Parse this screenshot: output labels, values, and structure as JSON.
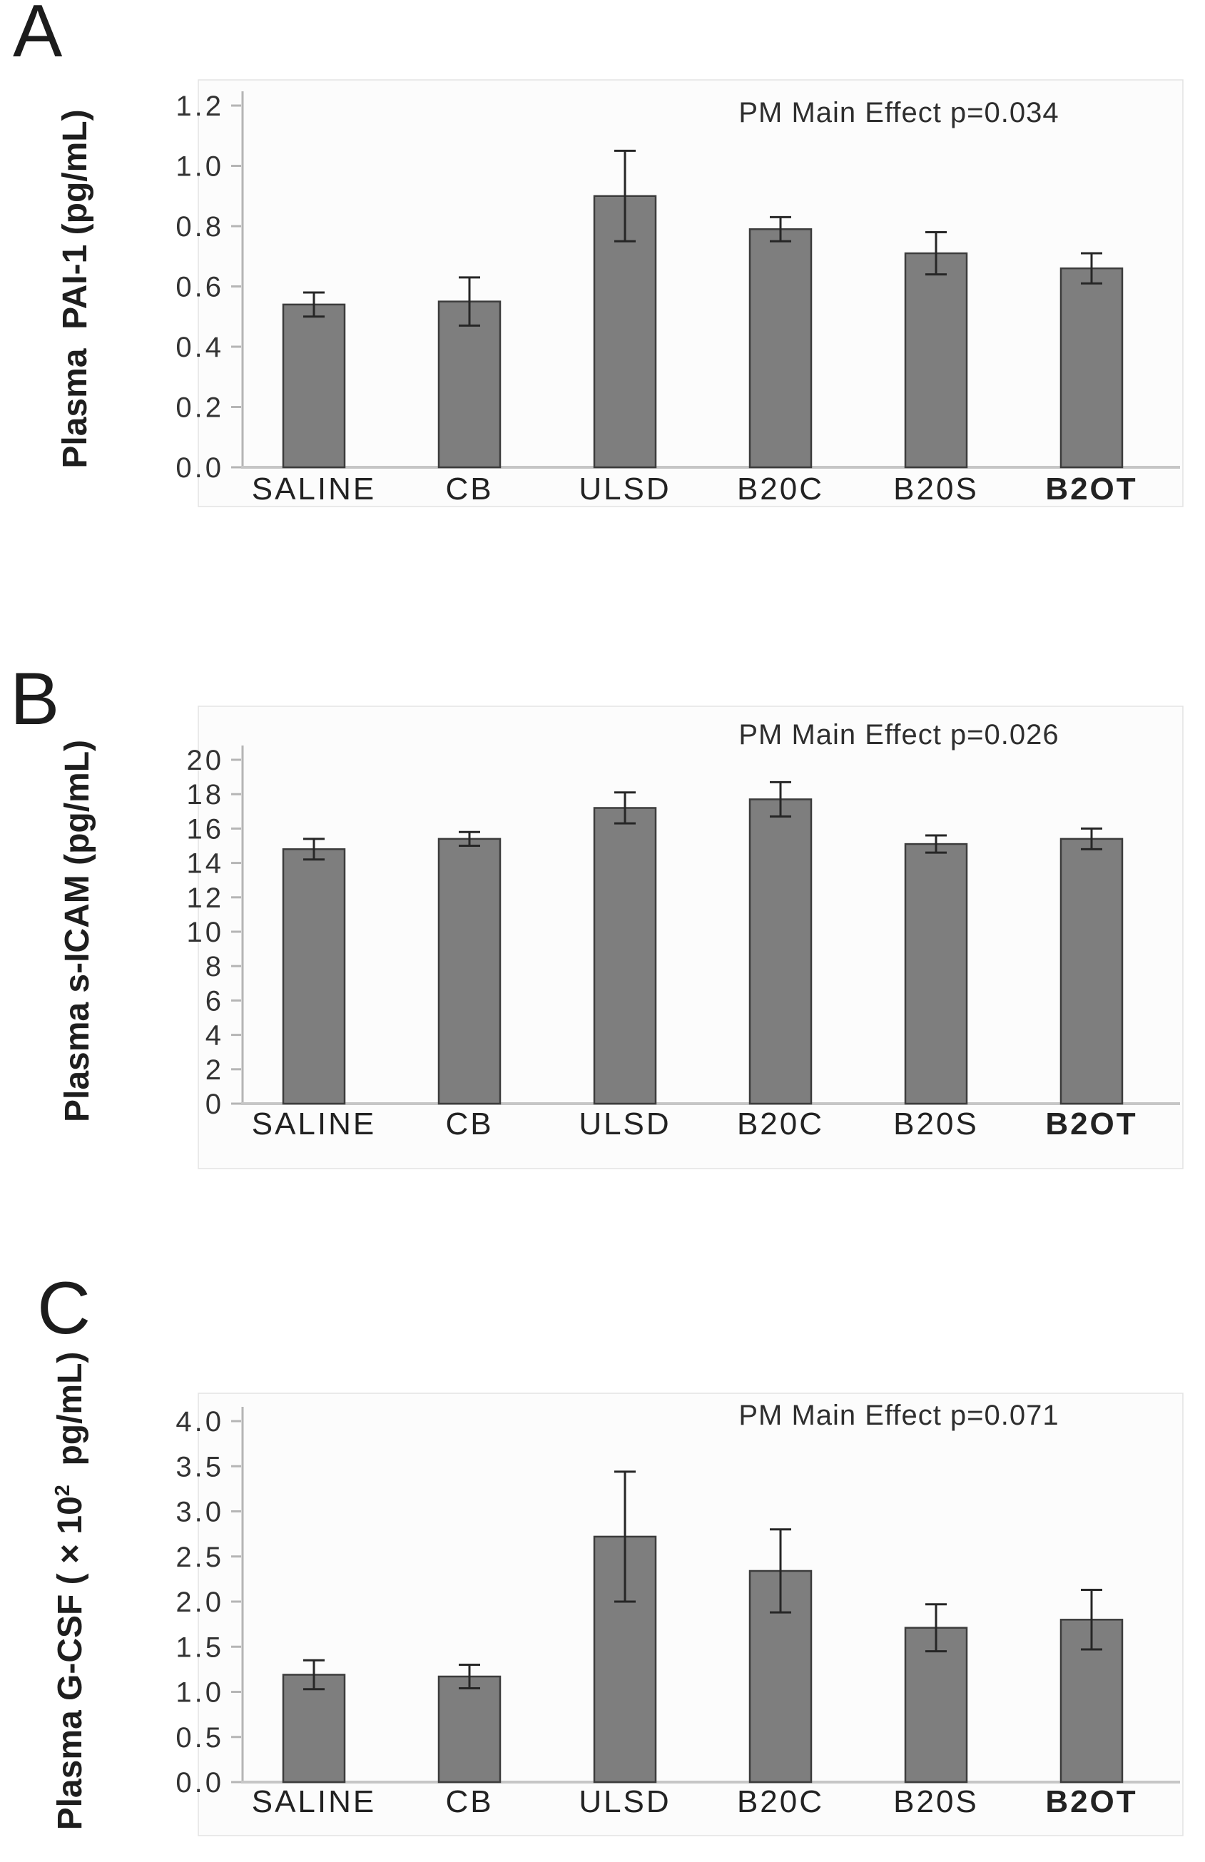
{
  "figure": {
    "background": "#ffffff",
    "bar_fill": "#7e7e7e",
    "bar_stroke": "#3c3c3c",
    "error_color": "#262626",
    "axis_color": "#b5b5b5",
    "baseline_color": "#c6c6c6",
    "chart_area_fill": "#fcfcfc",
    "chart_area_border": "#e3e3e3",
    "tick_label_color": "#333333",
    "category_label_color": "#222222"
  },
  "chart_data": [
    {
      "type": "bar",
      "panel_label": "A",
      "annotation": "PM Main Effect p=0.034",
      "title": "",
      "xlabel": "",
      "ylabel": {
        "pre": "Plasma  PAI-1 (pg/mL)",
        "sup": "",
        "post": ""
      },
      "categories": [
        "SALINE",
        "CB",
        "ULSD",
        "B20C",
        "B20S",
        "B2OT"
      ],
      "values": [
        0.54,
        0.55,
        0.9,
        0.79,
        0.71,
        0.66
      ],
      "errors": [
        0.04,
        0.08,
        0.15,
        0.04,
        0.07,
        0.05
      ],
      "ylim": [
        0,
        1.2
      ],
      "ytick_step": 0.2,
      "ytick_decimals": 1,
      "grid": false,
      "legend": "none"
    },
    {
      "type": "bar",
      "panel_label": "B",
      "annotation": "PM Main Effect p=0.026",
      "title": "",
      "xlabel": "",
      "ylabel": {
        "pre": "Plasma s-ICAM (pg/mL)",
        "sup": "",
        "post": ""
      },
      "categories": [
        "SALINE",
        "CB",
        "ULSD",
        "B20C",
        "B20S",
        "B2OT"
      ],
      "values": [
        14.8,
        15.4,
        17.2,
        17.7,
        15.1,
        15.4
      ],
      "errors": [
        0.6,
        0.4,
        0.9,
        1.0,
        0.5,
        0.6
      ],
      "ylim": [
        0,
        20
      ],
      "ytick_step": 2,
      "ytick_decimals": 0,
      "grid": false,
      "legend": "none"
    },
    {
      "type": "bar",
      "panel_label": "C",
      "annotation": "PM Main Effect p=0.071",
      "title": "",
      "xlabel": "",
      "ylabel": {
        "pre": "Plasma G-CSF ( × 10",
        "sup": "2",
        "post": "  pg/mL)"
      },
      "categories": [
        "SALINE",
        "CB",
        "ULSD",
        "B20C",
        "B20S",
        "B2OT"
      ],
      "values": [
        1.19,
        1.17,
        2.72,
        2.34,
        1.71,
        1.8
      ],
      "errors": [
        0.16,
        0.13,
        0.72,
        0.46,
        0.26,
        0.33
      ],
      "ylim": [
        0,
        4.0
      ],
      "ytick_step": 0.5,
      "ytick_decimals": 1,
      "grid": false,
      "legend": "none"
    }
  ]
}
